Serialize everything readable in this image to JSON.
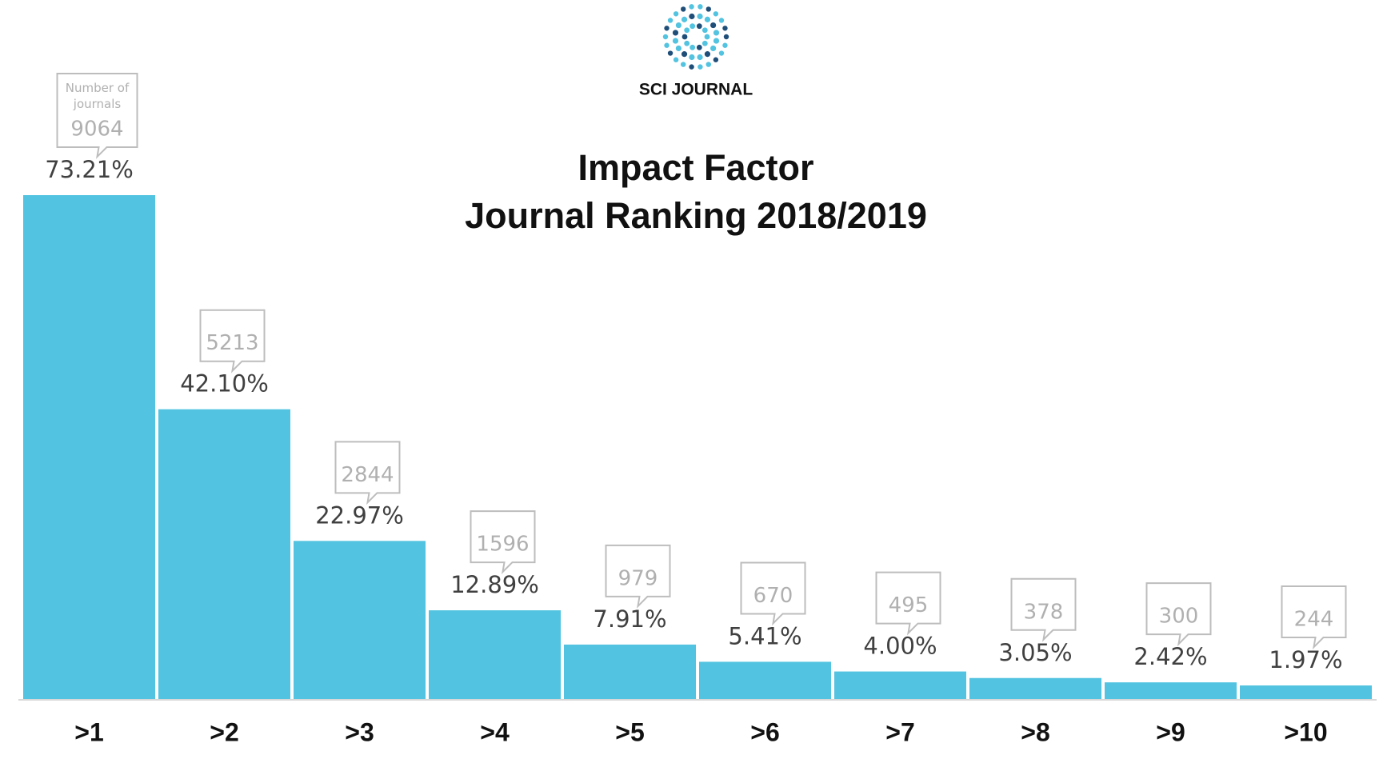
{
  "chart_data": {
    "type": "bar",
    "logo_text": "SCI JOURNAL",
    "title": "Impact Factor",
    "subtitle": "Journal Ranking 2018/2019",
    "categories": [
      ">1",
      ">2",
      ">3",
      ">4",
      ">5",
      ">6",
      ">7",
      ">8",
      ">9",
      ">10"
    ],
    "values": [
      73.21,
      42.1,
      22.97,
      12.89,
      7.91,
      5.41,
      4.0,
      3.05,
      2.42,
      1.97
    ],
    "value_labels": [
      "73.21%",
      "42.10%",
      "22.97%",
      "12.89%",
      "7.91%",
      "5.41%",
      "4.00%",
      "3.05%",
      "2.42%",
      "1.97%"
    ],
    "counts_label": "Number of journals",
    "counts": [
      9064,
      5213,
      2844,
      1596,
      979,
      670,
      495,
      378,
      300,
      244
    ],
    "color": "#52c3e0"
  }
}
